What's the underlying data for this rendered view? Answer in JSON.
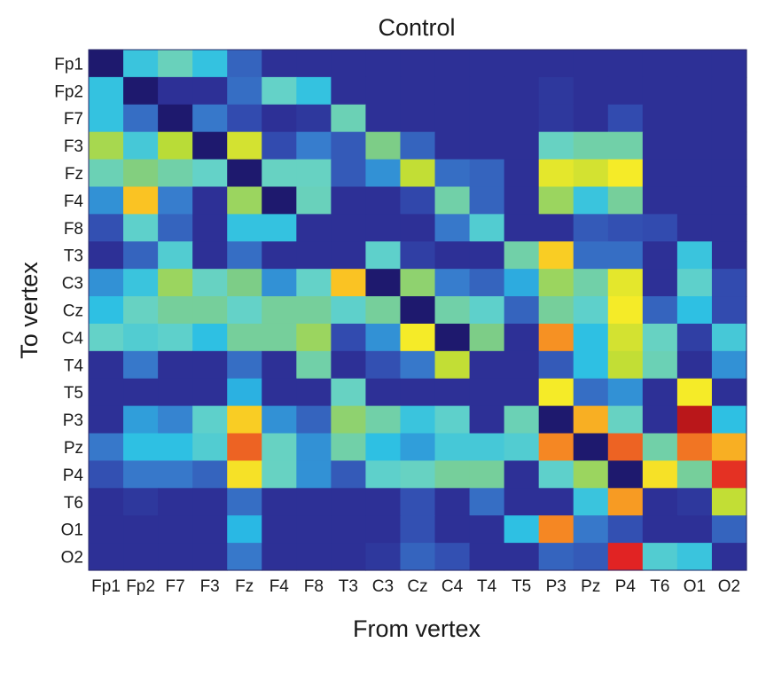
{
  "chart_data": {
    "type": "heatmap",
    "title": "Control",
    "xlabel": "From vertex",
    "ylabel": "To vertex",
    "x_categories": [
      "Fp1",
      "Fp2",
      "F7",
      "F3",
      "Fz",
      "F4",
      "F8",
      "T3",
      "C3",
      "Cz",
      "C4",
      "T4",
      "T5",
      "P3",
      "Pz",
      "P4",
      "T6",
      "O1",
      "O2"
    ],
    "y_categories": [
      "Fp1",
      "Fp2",
      "F7",
      "F3",
      "Fz",
      "F4",
      "F8",
      "T3",
      "C3",
      "Cz",
      "C4",
      "T4",
      "T5",
      "P3",
      "Pz",
      "P4",
      "T6",
      "O1",
      "O2"
    ],
    "value_range": [
      0,
      1
    ],
    "colormap": "jet",
    "colorbar": false,
    "grid": false,
    "values": [
      [
        0.0,
        0.38,
        0.47,
        0.37,
        0.2,
        0.08,
        0.08,
        0.08,
        0.08,
        0.08,
        0.08,
        0.08,
        0.08,
        0.08,
        0.08,
        0.08,
        0.08,
        0.08,
        0.08
      ],
      [
        0.37,
        0.0,
        0.08,
        0.08,
        0.22,
        0.45,
        0.37,
        0.08,
        0.08,
        0.08,
        0.08,
        0.08,
        0.08,
        0.1,
        0.08,
        0.08,
        0.08,
        0.08,
        0.08
      ],
      [
        0.37,
        0.22,
        0.0,
        0.24,
        0.15,
        0.08,
        0.1,
        0.48,
        0.08,
        0.08,
        0.08,
        0.08,
        0.08,
        0.1,
        0.08,
        0.15,
        0.08,
        0.08,
        0.08
      ],
      [
        0.62,
        0.4,
        0.65,
        0.0,
        0.68,
        0.15,
        0.25,
        0.18,
        0.55,
        0.2,
        0.08,
        0.08,
        0.08,
        0.46,
        0.5,
        0.5,
        0.08,
        0.08,
        0.08
      ],
      [
        0.48,
        0.56,
        0.5,
        0.45,
        0.0,
        0.46,
        0.46,
        0.18,
        0.28,
        0.66,
        0.22,
        0.2,
        0.08,
        0.7,
        0.68,
        0.72,
        0.08,
        0.08,
        0.08
      ],
      [
        0.28,
        0.8,
        0.25,
        0.08,
        0.6,
        0.0,
        0.47,
        0.08,
        0.08,
        0.14,
        0.5,
        0.2,
        0.08,
        0.6,
        0.38,
        0.52,
        0.08,
        0.08,
        0.08
      ],
      [
        0.16,
        0.44,
        0.2,
        0.08,
        0.37,
        0.37,
        0.08,
        0.08,
        0.08,
        0.08,
        0.24,
        0.42,
        0.08,
        0.08,
        0.18,
        0.16,
        0.15,
        0.08,
        0.08
      ],
      [
        0.08,
        0.2,
        0.42,
        0.08,
        0.22,
        0.08,
        0.08,
        0.08,
        0.44,
        0.12,
        0.08,
        0.08,
        0.5,
        0.78,
        0.22,
        0.22,
        0.08,
        0.38,
        0.08
      ],
      [
        0.28,
        0.38,
        0.6,
        0.46,
        0.55,
        0.28,
        0.45,
        0.8,
        0.0,
        0.58,
        0.25,
        0.2,
        0.32,
        0.6,
        0.5,
        0.7,
        0.08,
        0.44,
        0.15
      ],
      [
        0.36,
        0.46,
        0.52,
        0.52,
        0.45,
        0.52,
        0.52,
        0.44,
        0.52,
        0.0,
        0.5,
        0.44,
        0.2,
        0.52,
        0.44,
        0.72,
        0.2,
        0.36,
        0.15
      ],
      [
        0.45,
        0.42,
        0.44,
        0.36,
        0.52,
        0.52,
        0.6,
        0.15,
        0.28,
        0.72,
        0.0,
        0.55,
        0.08,
        0.85,
        0.36,
        0.68,
        0.46,
        0.12,
        0.4
      ],
      [
        0.08,
        0.24,
        0.08,
        0.08,
        0.22,
        0.08,
        0.5,
        0.08,
        0.16,
        0.24,
        0.66,
        0.08,
        0.08,
        0.18,
        0.36,
        0.66,
        0.48,
        0.08,
        0.28
      ],
      [
        0.08,
        0.08,
        0.08,
        0.08,
        0.33,
        0.08,
        0.08,
        0.46,
        0.08,
        0.08,
        0.08,
        0.08,
        0.08,
        0.72,
        0.22,
        0.28,
        0.08,
        0.72,
        0.08
      ],
      [
        0.08,
        0.3,
        0.26,
        0.44,
        0.78,
        0.28,
        0.2,
        0.58,
        0.5,
        0.38,
        0.44,
        0.08,
        0.48,
        0.0,
        0.82,
        0.46,
        0.08,
        0.98,
        0.36
      ],
      [
        0.24,
        0.36,
        0.36,
        0.42,
        0.9,
        0.46,
        0.28,
        0.5,
        0.36,
        0.3,
        0.4,
        0.4,
        0.42,
        0.86,
        0.0,
        0.9,
        0.5,
        0.88,
        0.82
      ],
      [
        0.16,
        0.24,
        0.24,
        0.2,
        0.74,
        0.46,
        0.28,
        0.18,
        0.44,
        0.46,
        0.52,
        0.52,
        0.08,
        0.44,
        0.6,
        0.0,
        0.74,
        0.52,
        0.94
      ],
      [
        0.08,
        0.1,
        0.08,
        0.08,
        0.22,
        0.08,
        0.08,
        0.08,
        0.08,
        0.16,
        0.08,
        0.22,
        0.08,
        0.08,
        0.38,
        0.84,
        0.08,
        0.1,
        0.66
      ],
      [
        0.08,
        0.08,
        0.08,
        0.08,
        0.34,
        0.08,
        0.08,
        0.08,
        0.08,
        0.16,
        0.08,
        0.08,
        0.36,
        0.86,
        0.24,
        0.16,
        0.08,
        0.08,
        0.2
      ],
      [
        0.08,
        0.08,
        0.08,
        0.08,
        0.24,
        0.08,
        0.08,
        0.08,
        0.1,
        0.2,
        0.16,
        0.08,
        0.08,
        0.2,
        0.18,
        0.95,
        0.42,
        0.38,
        0.08
      ]
    ]
  }
}
